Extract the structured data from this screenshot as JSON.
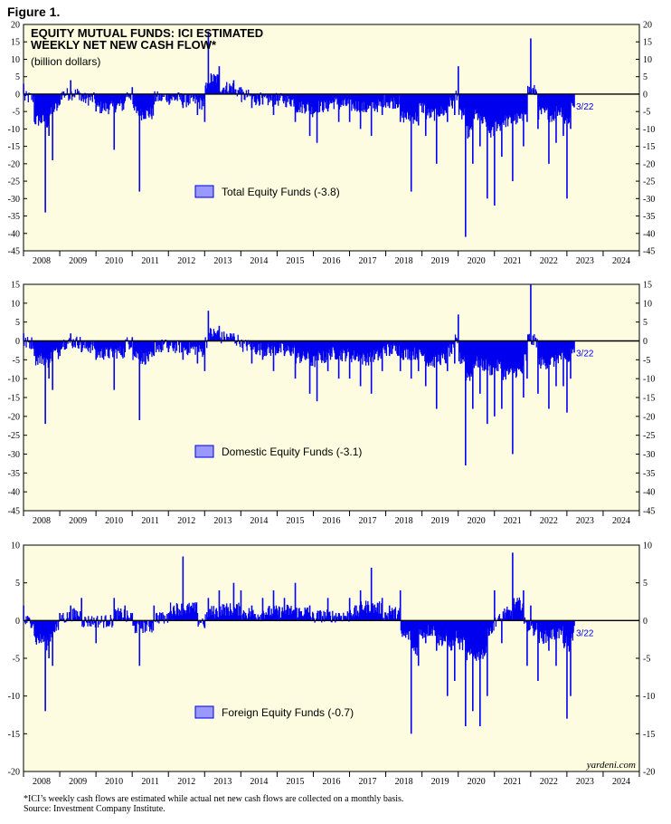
{
  "figure_label": "Figure 1.",
  "footnote": {
    "line1": "*ICI’s weekly cash flows are estimated while actual net new cash flows are collected on a monthly basis.",
    "line2": "Source: Investment Company Institute."
  },
  "colors": {
    "bar": "#0000ee",
    "panel_bg": "#fdfce0",
    "legend_fill": "#9999ff",
    "zero_line": "#000000"
  },
  "chart_data": [
    {
      "type": "bar",
      "title_lines": [
        "EQUITY MUTUAL FUNDS: ICI ESTIMATED",
        "WEEKLY NET NEW CASH FLOW*"
      ],
      "subtitle": "(billion dollars)",
      "legend": "Total Equity Funds (-3.8)",
      "annotation": "3/22",
      "brand": "",
      "ylim": [
        -45,
        20
      ],
      "yticks": [
        20,
        15,
        10,
        5,
        0,
        -5,
        -10,
        -15,
        -20,
        -25,
        -30,
        -35,
        -40,
        -45
      ],
      "xlim": [
        2008.0,
        2025.0
      ],
      "year_labels": [
        "2008",
        "2009",
        "2010",
        "2011",
        "2012",
        "2013",
        "2014",
        "2015",
        "2016",
        "2017",
        "2018",
        "2019",
        "2020",
        "2021",
        "2022",
        "2023",
        "2024"
      ],
      "grid": false,
      "series": [
        {
          "x": [
            2008.0,
            2008.3,
            2008.6,
            2008.7,
            2008.8,
            2009.0,
            2009.3,
            2009.6,
            2010.0,
            2010.5,
            2010.8,
            2011.0,
            2011.2,
            2011.6,
            2011.8,
            2012.0,
            2012.4,
            2012.8,
            2013.0,
            2013.1,
            2013.4,
            2013.8,
            2014.0,
            2014.3,
            2014.6,
            2014.9,
            2015.2,
            2015.5,
            2015.9,
            2016.1,
            2016.4,
            2016.7,
            2017.0,
            2017.3,
            2017.6,
            2017.9,
            2018.1,
            2018.4,
            2018.7,
            2018.9,
            2019.1,
            2019.4,
            2019.7,
            2019.9,
            2020.0,
            2020.2,
            2020.4,
            2020.6,
            2020.8,
            2021.0,
            2021.2,
            2021.5,
            2021.8,
            2021.9,
            2022.0,
            2022.2,
            2022.5,
            2022.7,
            2022.9,
            2023.0,
            2023.1,
            2023.2
          ],
          "y": [
            3,
            -8,
            -34,
            -12,
            -19,
            -3,
            4,
            -2,
            -5,
            -16,
            -2,
            2,
            -28,
            -3,
            -2,
            -2,
            -4,
            -6,
            -8,
            18,
            8,
            4,
            2,
            -4,
            -3,
            -6,
            -2,
            -8,
            -12,
            -14,
            -5,
            -8,
            -8,
            -10,
            -12,
            -6,
            -4,
            -8,
            -28,
            -9,
            -12,
            -20,
            -8,
            -6,
            8,
            -41,
            -20,
            -15,
            -30,
            -32,
            -18,
            -25,
            -15,
            -8,
            16,
            -10,
            -20,
            -14,
            -12,
            -30,
            -10,
            -3.8
          ]
        }
      ]
    },
    {
      "type": "bar",
      "title_lines": [],
      "subtitle": "",
      "legend": "Domestic Equity Funds (-3.1)",
      "annotation": "3/22",
      "brand": "",
      "ylim": [
        -45,
        15
      ],
      "yticks": [
        15,
        10,
        5,
        0,
        -5,
        -10,
        -15,
        -20,
        -25,
        -30,
        -35,
        -40,
        -45
      ],
      "xlim": [
        2008.0,
        2025.0
      ],
      "year_labels": [
        "2008",
        "2009",
        "2010",
        "2011",
        "2012",
        "2013",
        "2014",
        "2015",
        "2016",
        "2017",
        "2018",
        "2019",
        "2020",
        "2021",
        "2022",
        "2023",
        "2024"
      ],
      "grid": false,
      "series": [
        {
          "x": [
            2008.0,
            2008.3,
            2008.6,
            2008.7,
            2008.8,
            2009.0,
            2009.3,
            2009.6,
            2010.0,
            2010.5,
            2010.8,
            2011.0,
            2011.2,
            2011.6,
            2011.8,
            2012.0,
            2012.4,
            2012.8,
            2013.0,
            2013.1,
            2013.4,
            2013.8,
            2014.0,
            2014.3,
            2014.6,
            2014.9,
            2015.2,
            2015.5,
            2015.9,
            2016.1,
            2016.4,
            2016.7,
            2017.0,
            2017.3,
            2017.6,
            2017.9,
            2018.1,
            2018.4,
            2018.7,
            2018.9,
            2019.1,
            2019.4,
            2019.7,
            2019.9,
            2020.0,
            2020.2,
            2020.4,
            2020.6,
            2020.8,
            2021.0,
            2021.2,
            2021.5,
            2021.8,
            2021.9,
            2022.0,
            2022.2,
            2022.5,
            2022.7,
            2022.9,
            2023.0,
            2023.1,
            2023.2
          ],
          "y": [
            2,
            -4,
            -22,
            -10,
            -13,
            -4,
            2,
            -3,
            -5,
            -13,
            -3,
            1,
            -21,
            -4,
            -3,
            -3,
            -5,
            -6,
            -8,
            8,
            4,
            2,
            0,
            -6,
            -5,
            -8,
            -4,
            -10,
            -14,
            -16,
            -8,
            -10,
            -10,
            -12,
            -14,
            -8,
            -4,
            -8,
            -10,
            -8,
            -12,
            -18,
            -8,
            -6,
            7,
            -33,
            -18,
            -14,
            -22,
            -20,
            -18,
            -30,
            -15,
            -10,
            15,
            -14,
            -18,
            -12,
            -12,
            -19,
            -10,
            -3.1
          ]
        }
      ]
    },
    {
      "type": "bar",
      "title_lines": [],
      "subtitle": "",
      "legend": "Foreign Equity Funds (-0.7)",
      "annotation": "3/22",
      "brand": "yardeni.com",
      "ylim": [
        -20,
        10
      ],
      "yticks": [
        10,
        5,
        0,
        -5,
        -10,
        -15,
        -20
      ],
      "xlim": [
        2008.0,
        2025.0
      ],
      "year_labels": [
        "2008",
        "2009",
        "2010",
        "2011",
        "2012",
        "2013",
        "2014",
        "2015",
        "2016",
        "2017",
        "2018",
        "2019",
        "2020",
        "2021",
        "2022",
        "2023",
        "2024"
      ],
      "grid": false,
      "series": [
        {
          "x": [
            2008.0,
            2008.3,
            2008.6,
            2008.7,
            2008.8,
            2009.0,
            2009.3,
            2009.6,
            2010.0,
            2010.5,
            2010.8,
            2011.0,
            2011.2,
            2011.6,
            2011.8,
            2012.0,
            2012.4,
            2012.8,
            2013.0,
            2013.1,
            2013.4,
            2013.8,
            2014.0,
            2014.3,
            2014.6,
            2014.9,
            2015.2,
            2015.5,
            2015.9,
            2016.1,
            2016.4,
            2016.7,
            2017.0,
            2017.3,
            2017.6,
            2017.9,
            2018.1,
            2018.4,
            2018.7,
            2018.9,
            2019.1,
            2019.4,
            2019.7,
            2019.9,
            2020.0,
            2020.2,
            2020.4,
            2020.6,
            2020.8,
            2021.0,
            2021.2,
            2021.5,
            2021.8,
            2021.9,
            2022.0,
            2022.2,
            2022.5,
            2022.7,
            2022.9,
            2023.0,
            2023.1,
            2023.2
          ],
          "y": [
            2,
            -2,
            -12,
            -5,
            -6,
            1,
            2,
            3,
            -3,
            3,
            2,
            1,
            -6,
            2,
            1,
            1,
            8.5,
            1,
            -1,
            3,
            4,
            5,
            4,
            2,
            3,
            4,
            3,
            5,
            2,
            1,
            3,
            1,
            3,
            4,
            7,
            3,
            2,
            4,
            -15,
            -6,
            -3,
            -4,
            -10,
            -8,
            -3,
            -14,
            -12,
            -14,
            -10,
            4,
            -3,
            9,
            4,
            -6,
            2,
            -8,
            -4,
            -6,
            -3,
            -13,
            -10,
            -0.7
          ]
        }
      ]
    }
  ]
}
